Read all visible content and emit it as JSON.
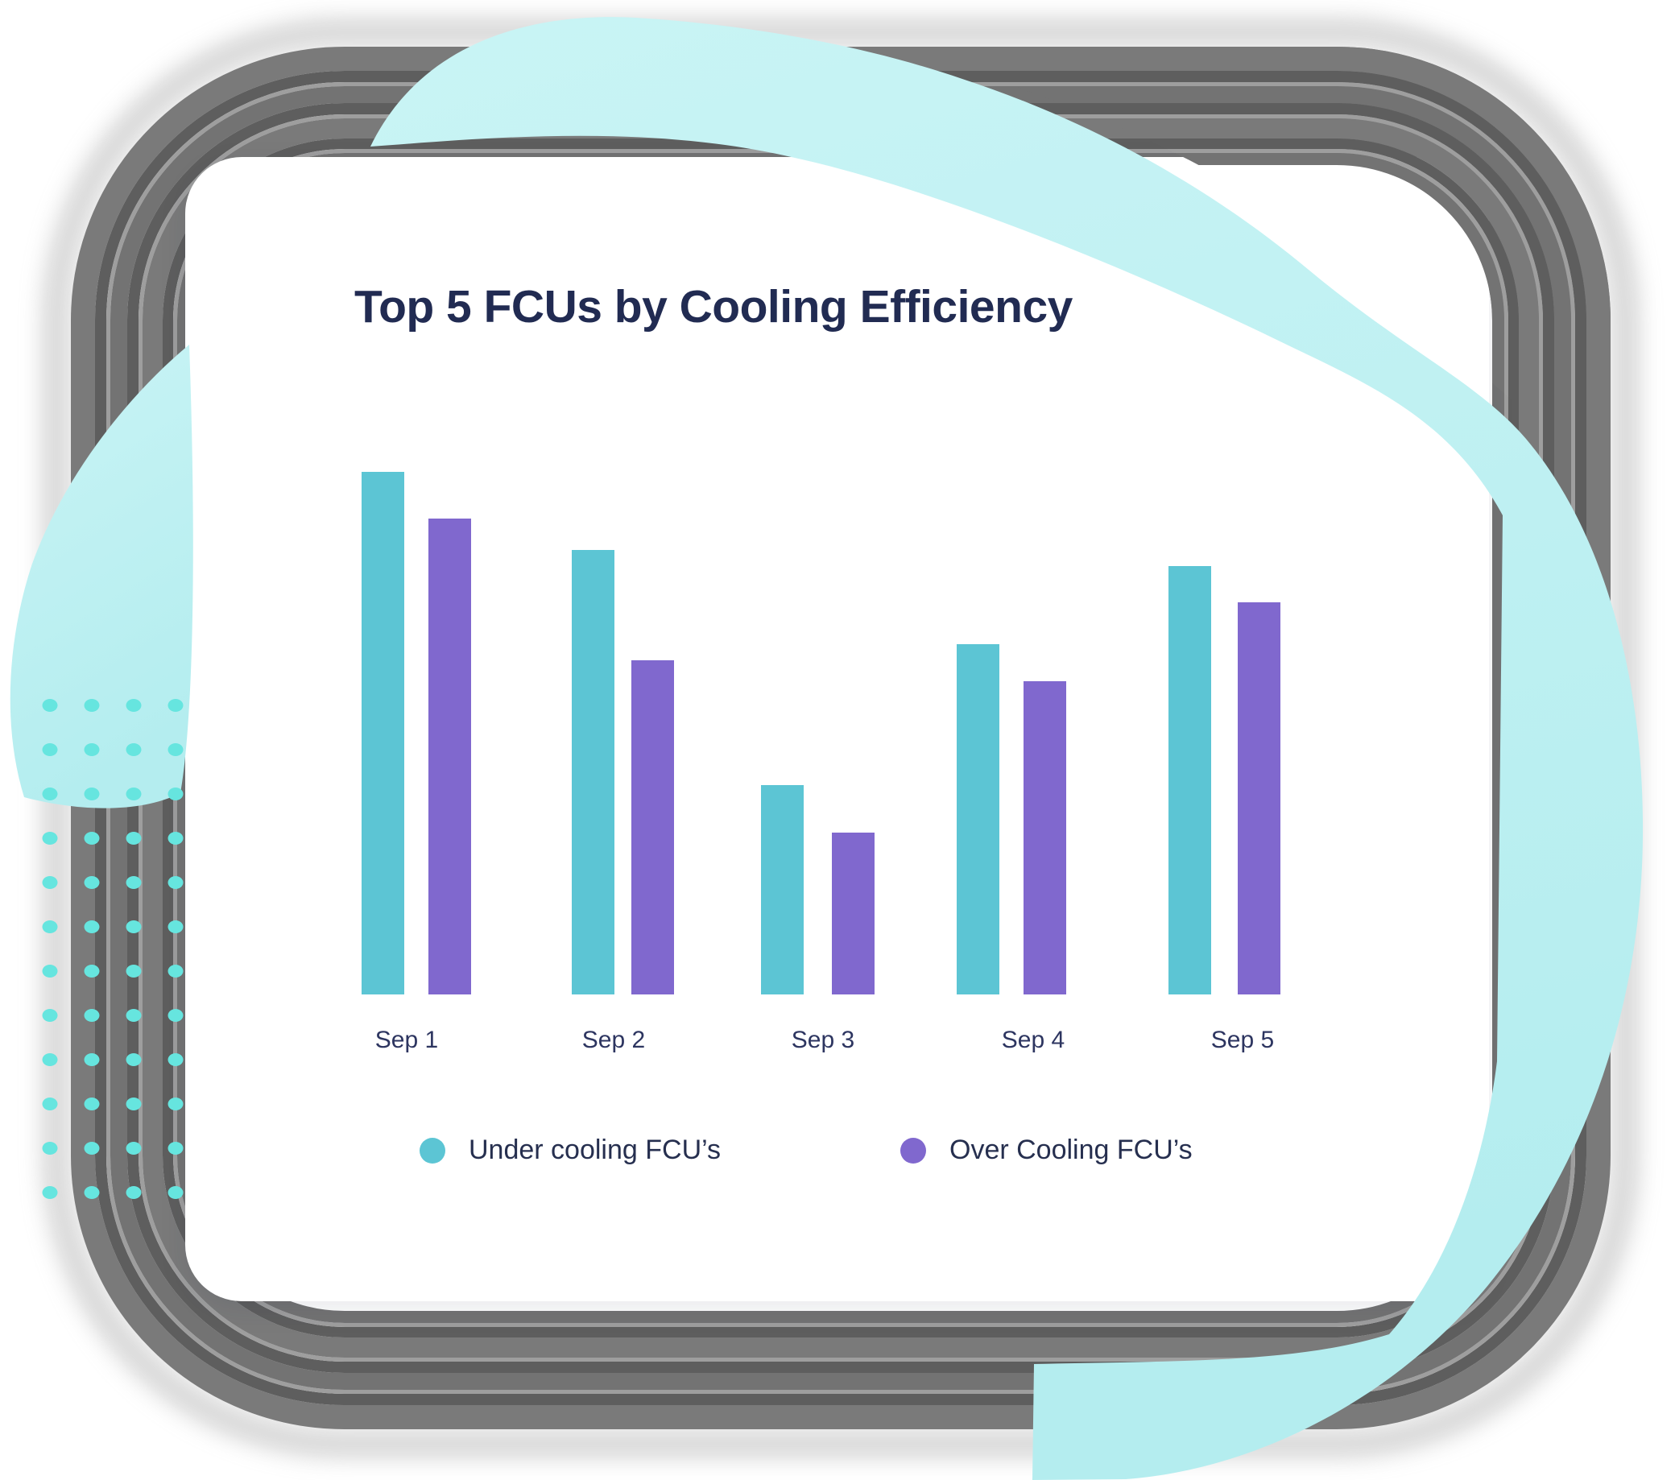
{
  "chart_data": {
    "type": "bar",
    "title": "Top 5 FCUs by Cooling Efficiency",
    "categories": [
      "Sep 1",
      "Sep 2",
      "Sep 3",
      "Sep 4",
      "Sep 5"
    ],
    "series": [
      {
        "name": "Under cooling FCU’s",
        "color": "#5cc5d4",
        "values": [
          100,
          85,
          40,
          67,
          82
        ]
      },
      {
        "name": "Over Cooling FCU’s",
        "color": "#8068ce",
        "values": [
          91,
          64,
          31,
          60,
          75
        ]
      }
    ],
    "ylim": [
      0,
      100
    ],
    "xlabel": "",
    "ylabel": "",
    "grid": false,
    "y_axis_visible": false,
    "legend_position": "bottom"
  },
  "colors": {
    "title_text": "#212b52",
    "axis_label_text": "#2d3560",
    "legend_text": "#262f4f"
  },
  "decor": {
    "frame_gray_mid": "#7a7a7a",
    "frame_gray_mid2": "#737373",
    "frame_gray_dark": "#5e5e5e",
    "frame_gray_light": "#9e9e9e",
    "frame_shadow": "#909090",
    "blob_teal": "#b4edef",
    "blob_teal_light": "#c9f4f5",
    "dot_teal": "#66e5df",
    "card_bg": "#ffffff"
  }
}
